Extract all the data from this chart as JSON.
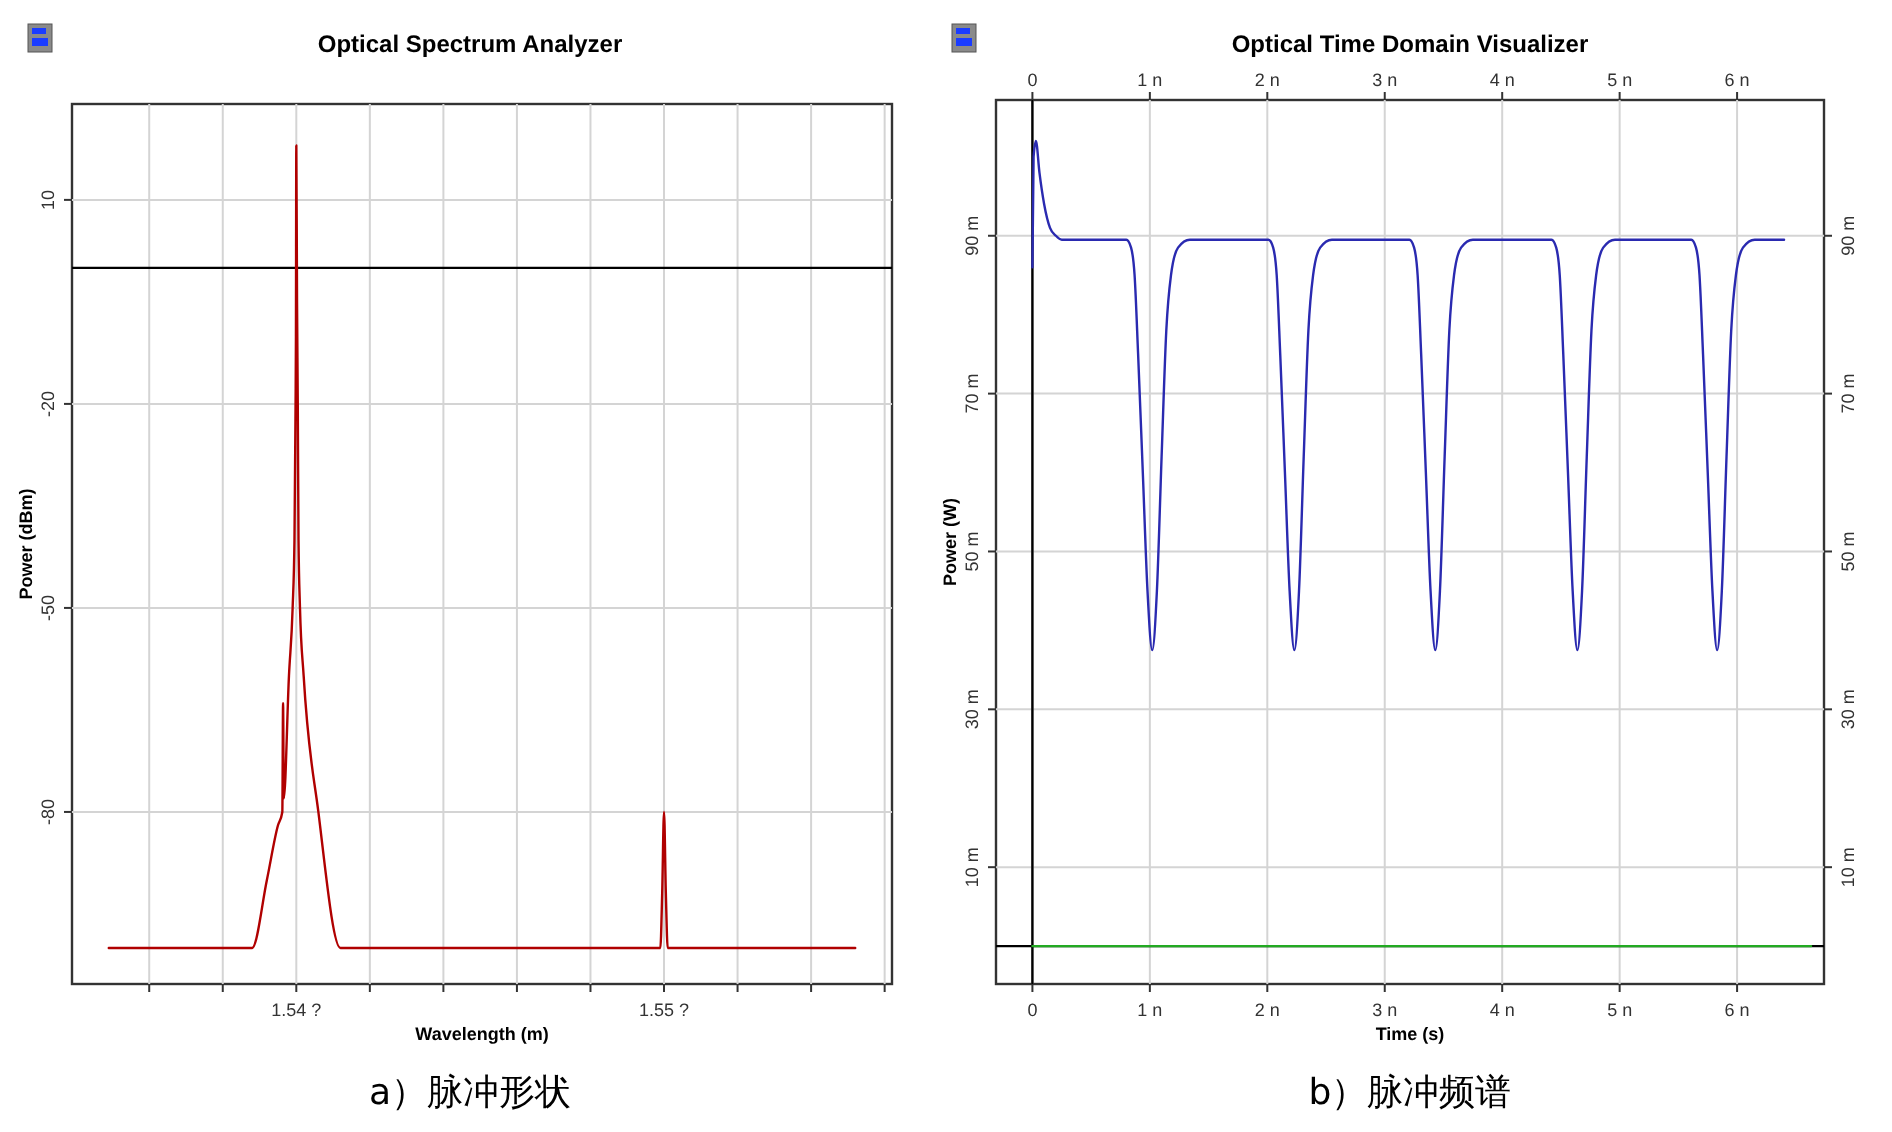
{
  "chart_data": [
    {
      "type": "line",
      "title": "Optical Spectrum Analyzer",
      "xlabel": "Wavelength (m)",
      "ylabel": "Power (dBm)",
      "annotations": [
        "a）脉冲形状"
      ],
      "xlim": [
        1.5339,
        1.5562
      ],
      "ylim": [
        -105.3,
        24.1
      ],
      "xticks": [
        {
          "value": 1.536,
          "label": null
        },
        {
          "value": 1.538,
          "label": null
        },
        {
          "value": 1.54,
          "label": "1.54 ?"
        },
        {
          "value": 1.542,
          "label": null
        },
        {
          "value": 1.544,
          "label": null
        },
        {
          "value": 1.546,
          "label": null
        },
        {
          "value": 1.548,
          "label": null
        },
        {
          "value": 1.55,
          "label": "1.55 ?"
        },
        {
          "value": 1.552,
          "label": null
        },
        {
          "value": 1.554,
          "label": null
        },
        {
          "value": 1.556,
          "label": null
        }
      ],
      "yticks": [
        10,
        -20,
        -50,
        -80
      ],
      "grid": true,
      "ref_lines": [
        {
          "axis": "y",
          "value": 0,
          "label": null,
          "color": "#000000"
        }
      ],
      "series": [
        {
          "color": "#b00000",
          "x": [
            1.5349,
            1.5388,
            1.5392,
            1.5395,
            1.53962,
            1.53964,
            1.53966,
            1.5398,
            1.5399,
            1.53995,
            1.53998,
            1.53999,
            1.54,
            1.54002,
            1.54004,
            1.54006,
            1.5401,
            1.5402,
            1.5406,
            1.5412,
            1.5499,
            1.54995,
            1.55,
            1.55005,
            1.5501,
            1.5552
          ],
          "values": [
            -100,
            -100,
            -90,
            -82,
            -80,
            -64,
            -78,
            -60,
            -50,
            -40,
            -20,
            -10,
            18,
            -5,
            -20,
            -40,
            -50,
            -60,
            -80,
            -100,
            -100,
            -92,
            -80,
            -92,
            -100,
            -100
          ]
        }
      ]
    },
    {
      "type": "line",
      "title": "Optical Time Domain Visualizer",
      "xlabel": "Time (s)",
      "ylabel": "Power (W)",
      "annotations": [
        "b）脉冲频谱"
      ],
      "xlim": [
        -0.31,
        6.74
      ],
      "ylim": [
        -4.8,
        107.2
      ],
      "xticks": [
        0,
        {
          "value": 1,
          "label": "1 n"
        },
        {
          "value": 2,
          "label": "2 n"
        },
        {
          "value": 3,
          "label": "3 n"
        },
        {
          "value": 4,
          "label": "4 n"
        },
        {
          "value": 5,
          "label": "5 n"
        },
        {
          "value": 6,
          "label": "6 n"
        }
      ],
      "x2lim": [
        -0.31,
        6.74
      ],
      "x2ticks": [
        0,
        {
          "value": 1,
          "label": "1 n"
        },
        {
          "value": 2,
          "label": "2 n"
        },
        {
          "value": 3,
          "label": "3 n"
        },
        {
          "value": 4,
          "label": "4 n"
        },
        {
          "value": 5,
          "label": "5 n"
        },
        {
          "value": 6,
          "label": "6 n"
        }
      ],
      "yticks": [
        {
          "value": 10,
          "label": "10 m"
        },
        {
          "value": 30,
          "label": "30 m"
        },
        {
          "value": 50,
          "label": "50 m"
        },
        {
          "value": 70,
          "label": "70 m"
        },
        {
          "value": 90,
          "label": "90 m"
        }
      ],
      "y2lim": [
        -4.8,
        107.2
      ],
      "y2ticks": [
        {
          "value": 10,
          "label": "10 m"
        },
        {
          "value": 30,
          "label": "30 m"
        },
        {
          "value": 50,
          "label": "50 m"
        },
        {
          "value": 70,
          "label": "70 m"
        },
        {
          "value": 90,
          "label": "90 m"
        }
      ],
      "grid": true,
      "ref_lines": [
        {
          "axis": "x",
          "value": 0,
          "label": null,
          "color": "#000000"
        },
        {
          "axis": "y",
          "value": 0,
          "label": null,
          "color": "#000000"
        }
      ],
      "series": [
        {
          "color": "#2a2ab0",
          "x": [
            0,
            0.01,
            0.03,
            0.06,
            0.1,
            0.15,
            0.2,
            0.25,
            0.3,
            0.8,
            0.84,
            0.87,
            0.9,
            0.94,
            0.98,
            1.02,
            1.06,
            1.1,
            1.14,
            1.18,
            1.24,
            1.34,
            2.01,
            2.05,
            2.08,
            2.11,
            2.15,
            2.19,
            2.23,
            2.27,
            2.31,
            2.35,
            2.39,
            2.45,
            2.55,
            3.21,
            3.25,
            3.28,
            3.31,
            3.35,
            3.39,
            3.43,
            3.47,
            3.51,
            3.55,
            3.59,
            3.65,
            3.75,
            4.42,
            4.46,
            4.49,
            4.52,
            4.56,
            4.6,
            4.64,
            4.68,
            4.72,
            4.76,
            4.8,
            4.86,
            4.96,
            5.61,
            5.65,
            5.68,
            5.71,
            5.75,
            5.79,
            5.83,
            5.87,
            5.91,
            5.95,
            5.99,
            6.05,
            6.15,
            6.4
          ],
          "values": [
            86,
            100,
            102,
            98,
            94,
            91,
            90,
            89.5,
            89.5,
            89.5,
            88.5,
            85,
            75,
            60,
            45,
            37.5,
            45,
            62,
            78,
            85,
            88.5,
            89.5,
            89.5,
            88.5,
            85,
            75,
            60,
            45,
            37.5,
            45,
            62,
            78,
            85,
            88.5,
            89.5,
            89.5,
            88.5,
            85,
            75,
            60,
            45,
            37.5,
            45,
            62,
            78,
            85,
            88.5,
            89.5,
            89.5,
            88.5,
            85,
            75,
            60,
            45,
            37.5,
            45,
            62,
            78,
            85,
            88.5,
            89.5,
            89.5,
            88.5,
            85,
            75,
            60,
            45,
            37.5,
            45,
            62,
            78,
            85,
            88.5,
            89.5,
            89.5
          ]
        },
        {
          "color": "#22aa22",
          "x": [
            0,
            6.63
          ],
          "values": [
            0,
            0
          ]
        }
      ]
    }
  ]
}
